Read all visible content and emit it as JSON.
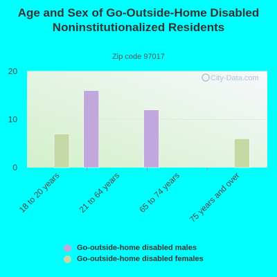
{
  "title": "Age and Sex of Go-Outside-Home Disabled Noninstitutionalized Residents",
  "subtitle": "Zip code 97017",
  "watermark": "City-Data.com",
  "colors": {
    "males": "#c0a8dc",
    "females": "#c6d9a4",
    "page_bg": "#00ffff"
  },
  "chart_data": {
    "type": "bar",
    "categories": [
      "18 to 20 years",
      "21 to 64 years",
      "65 to 74 years",
      "75 years and over"
    ],
    "series": [
      {
        "name": "Go-outside-home disabled males",
        "values": [
          0,
          16,
          12,
          0
        ]
      },
      {
        "name": "Go-outside-home disabled females",
        "values": [
          7,
          0,
          0,
          6
        ]
      }
    ],
    "ylim": [
      0,
      20
    ],
    "yticks": [
      0,
      10,
      20
    ],
    "grid": true,
    "legend_position": "bottom"
  }
}
